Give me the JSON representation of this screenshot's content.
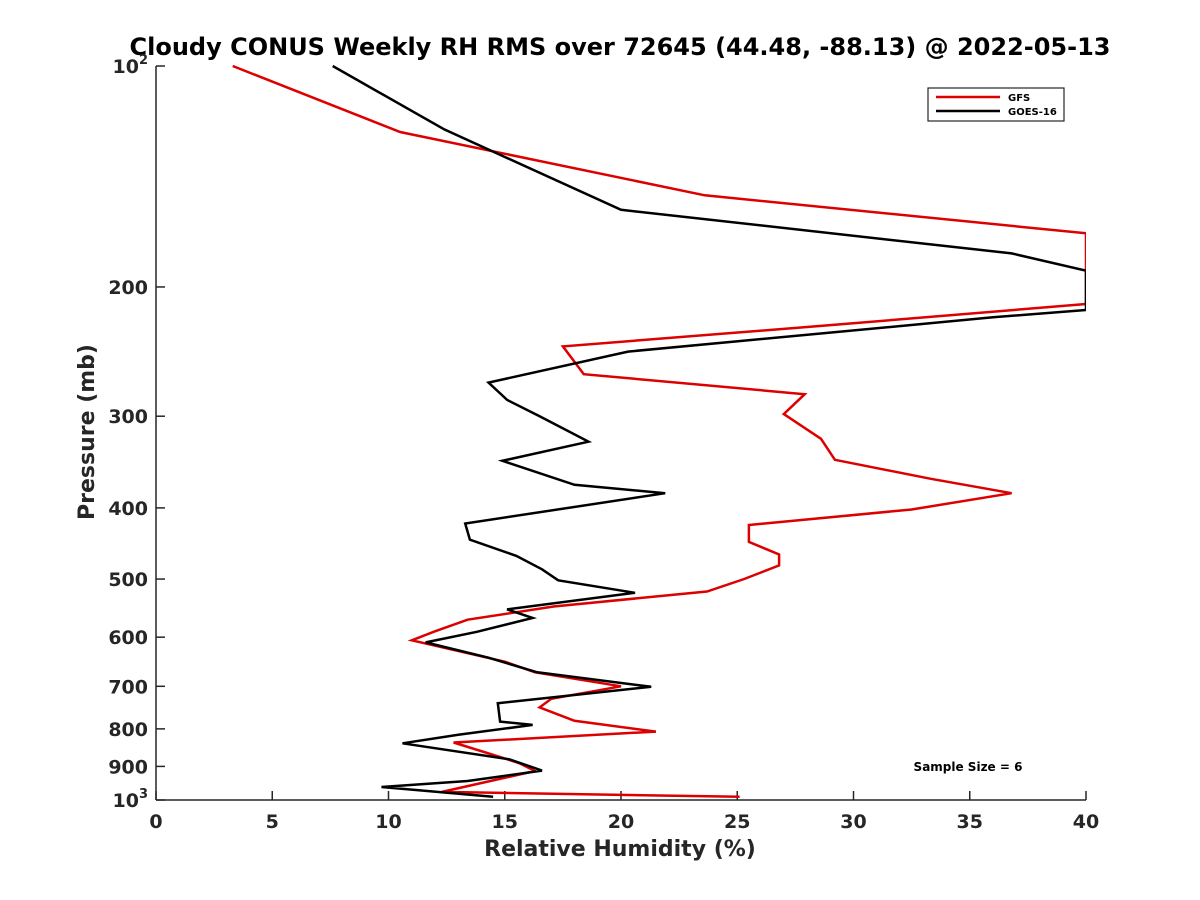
{
  "chart_data": {
    "type": "line",
    "title": "Cloudy CONUS Weekly RH RMS over 72645 (44.48, -88.13) @ 2022-05-13",
    "xlabel": "Relative Humidity (%)",
    "ylabel": "Pressure (mb)",
    "xlim": [
      0,
      40
    ],
    "ylim": [
      100,
      1000
    ],
    "y_scale": "log",
    "y_reversed": true,
    "x_ticks": [
      0,
      5,
      10,
      15,
      20,
      25,
      30,
      35,
      40
    ],
    "y_ticks": [
      {
        "value": 100,
        "base": "10",
        "exp": "2"
      },
      {
        "value": 200,
        "label": "200"
      },
      {
        "value": 300,
        "label": "300"
      },
      {
        "value": 400,
        "label": "400"
      },
      {
        "value": 500,
        "label": "500"
      },
      {
        "value": 600,
        "label": "600"
      },
      {
        "value": 700,
        "label": "700"
      },
      {
        "value": 800,
        "label": "800"
      },
      {
        "value": 900,
        "label": "900"
      },
      {
        "value": 1000,
        "base": "10",
        "exp": "3"
      }
    ],
    "grid": false,
    "legend_position": "top-right",
    "annotation": "Sample Size = 6",
    "series": [
      {
        "name": "GFS",
        "color": "#dd0000",
        "points": [
          [
            3.3,
            100
          ],
          [
            10.5,
            123
          ],
          [
            23.6,
            150
          ],
          [
            40,
            169
          ],
          [
            40,
            211
          ],
          [
            28.6,
            226
          ],
          [
            17.5,
            241
          ],
          [
            18.4,
            263
          ],
          [
            27.9,
            280
          ],
          [
            27.0,
            298
          ],
          [
            28.6,
            322
          ],
          [
            29.2,
            344
          ],
          [
            33.3,
            365
          ],
          [
            36.8,
            382
          ],
          [
            32.5,
            402
          ],
          [
            25.5,
            422
          ],
          [
            25.5,
            445
          ],
          [
            26.8,
            463
          ],
          [
            26.8,
            479
          ],
          [
            25.3,
            500
          ],
          [
            23.7,
            520
          ],
          [
            17.1,
            545
          ],
          [
            13.4,
            568
          ],
          [
            12.0,
            589
          ],
          [
            11.0,
            606
          ],
          [
            15.0,
            648
          ],
          [
            16.3,
            670
          ],
          [
            20.0,
            700
          ],
          [
            17.0,
            728
          ],
          [
            16.5,
            748
          ],
          [
            17.3,
            765
          ],
          [
            18.0,
            780
          ],
          [
            21.5,
            807
          ],
          [
            12.8,
            835
          ],
          [
            15.6,
            890
          ],
          [
            16.3,
            913
          ],
          [
            12.3,
            975
          ],
          [
            25.1,
            990
          ]
        ]
      },
      {
        "name": "GOES-16",
        "color": "#000000",
        "points": [
          [
            7.6,
            100
          ],
          [
            12.4,
            122
          ],
          [
            20.0,
            157
          ],
          [
            36.8,
            180
          ],
          [
            40,
            190
          ],
          [
            40,
            215
          ],
          [
            36.0,
            220
          ],
          [
            20.3,
            245
          ],
          [
            14.3,
            270
          ],
          [
            15.1,
            285
          ],
          [
            16.5,
            300
          ],
          [
            18.6,
            325
          ],
          [
            14.9,
            345
          ],
          [
            18.0,
            372
          ],
          [
            21.9,
            382
          ],
          [
            13.3,
            420
          ],
          [
            13.5,
            442
          ],
          [
            15.5,
            465
          ],
          [
            16.6,
            485
          ],
          [
            17.3,
            502
          ],
          [
            20.6,
            522
          ],
          [
            15.1,
            550
          ],
          [
            16.2,
            565
          ],
          [
            13.8,
            590
          ],
          [
            11.6,
            610
          ],
          [
            14.3,
            640
          ],
          [
            16.4,
            670
          ],
          [
            21.3,
            701
          ],
          [
            14.7,
            738
          ],
          [
            14.8,
            782
          ],
          [
            16.2,
            790
          ],
          [
            13.0,
            815
          ],
          [
            10.6,
            837
          ],
          [
            15.2,
            880
          ],
          [
            16.6,
            912
          ],
          [
            13.4,
            942
          ],
          [
            9.7,
            960
          ],
          [
            14.5,
            990
          ]
        ]
      }
    ]
  }
}
